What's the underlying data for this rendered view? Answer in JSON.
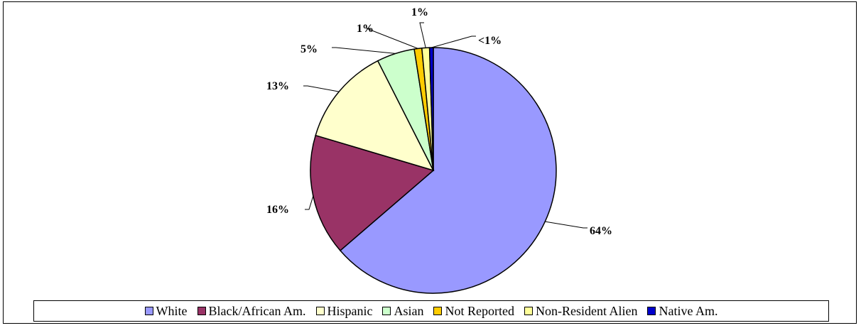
{
  "chart_data": {
    "type": "pie",
    "categories": [
      "White",
      "Black/African Am.",
      "Hispanic",
      "Asian",
      "Not Reported",
      "Non-Resident Alien",
      "Native Am."
    ],
    "values": [
      64,
      16,
      13,
      5,
      1,
      1,
      0.5
    ],
    "labels": [
      "64%",
      "16%",
      "13%",
      "5%",
      "1%",
      "1%",
      "<1%"
    ],
    "colors": [
      "#9999FF",
      "#993366",
      "#FFFFCC",
      "#CCFFCC",
      "#FFCC00",
      "#FFFF99",
      "#0000CC"
    ],
    "start_angle_deg": 0,
    "direction": "clockwise",
    "legend_position": "bottom",
    "title": "",
    "xlabel": "",
    "ylabel": ""
  }
}
